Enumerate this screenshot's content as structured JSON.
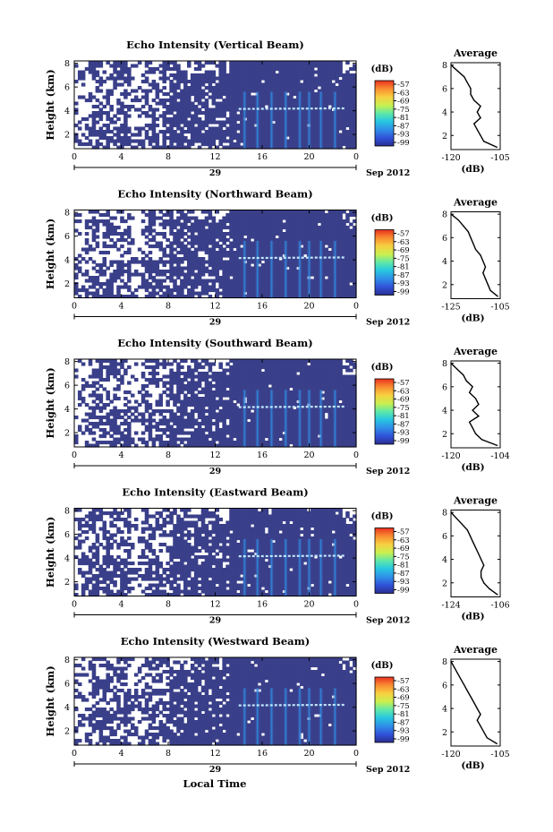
{
  "figure": {
    "xlabel": "Local Time",
    "date_label": "Sep 2012",
    "day_label": "29",
    "cbar_unit": "(dB)",
    "avg_title": "Average",
    "avg_xlabel": "(dB)"
  },
  "chart_data": [
    {
      "type": "heatmap",
      "title": "Echo Intensity (Vertical Beam)",
      "ylabel": "Height (km)",
      "xlabel": "",
      "x_ticks": [
        "0",
        "4",
        "8",
        "12",
        "16",
        "20",
        "0"
      ],
      "y_ticks": [
        "2",
        "4",
        "6",
        "8"
      ],
      "xlim": [
        0,
        24
      ],
      "ylim": [
        0.8,
        8.2
      ],
      "colorbar": {
        "label": "(dB)",
        "ticks": [
          "-57",
          "-63",
          "-69",
          "-75",
          "-81",
          "-87",
          "-93",
          "-99"
        ]
      },
      "note": "clear-air echo field; bright band at ~4.2 km from ~14 to ~23 LT; vertical rain streaks ~15–23 LT",
      "average_profile": {
        "title": "Average",
        "xlabel": "(dB)",
        "xlim": [
          -120,
          -105
        ],
        "x_ticks": [
          "-120",
          "-105"
        ],
        "y_ticks": [
          "2",
          "4",
          "6",
          "8"
        ],
        "heights": [
          1.0,
          1.5,
          2.0,
          2.5,
          3.0,
          3.5,
          4.0,
          4.5,
          5.0,
          5.5,
          6.0,
          6.5,
          7.0,
          7.5,
          8.0
        ],
        "values": [
          -106,
          -110,
          -111,
          -112,
          -113,
          -111,
          -112,
          -111,
          -113,
          -114,
          -114,
          -115,
          -116,
          -118,
          -120
        ]
      }
    },
    {
      "type": "heatmap",
      "title": "Echo Intensity (Northward Beam)",
      "ylabel": "Height (km)",
      "xlabel": "",
      "x_ticks": [
        "0",
        "4",
        "8",
        "12",
        "16",
        "20",
        "0"
      ],
      "y_ticks": [
        "2",
        "4",
        "6",
        "8"
      ],
      "xlim": [
        0,
        24
      ],
      "ylim": [
        0.8,
        8.2
      ],
      "colorbar": {
        "label": "(dB)",
        "ticks": [
          "-57",
          "-63",
          "-69",
          "-75",
          "-81",
          "-87",
          "-93",
          "-99"
        ]
      },
      "average_profile": {
        "title": "Average",
        "xlabel": "(dB)",
        "xlim": [
          -125,
          -105
        ],
        "x_ticks": [
          "-125",
          "-105"
        ],
        "y_ticks": [
          "2",
          "4",
          "6",
          "8"
        ],
        "heights": [
          1.0,
          1.5,
          2.0,
          2.5,
          3.0,
          3.5,
          4.0,
          4.5,
          5.0,
          5.5,
          6.0,
          6.5,
          7.0,
          7.5,
          8.0
        ],
        "values": [
          -106,
          -109,
          -110,
          -111,
          -112,
          -111,
          -112,
          -113,
          -115,
          -116,
          -117,
          -118,
          -120,
          -122,
          -125
        ]
      }
    },
    {
      "type": "heatmap",
      "title": "Echo Intensity (Southward Beam)",
      "ylabel": "Height (km)",
      "xlabel": "",
      "x_ticks": [
        "0",
        "4",
        "8",
        "12",
        "16",
        "20",
        "0"
      ],
      "y_ticks": [
        "2",
        "4",
        "6",
        "8"
      ],
      "xlim": [
        0,
        24
      ],
      "ylim": [
        0.8,
        8.2
      ],
      "colorbar": {
        "label": "(dB)",
        "ticks": [
          "-57",
          "-63",
          "-69",
          "-75",
          "-81",
          "-87",
          "-93",
          "-99"
        ]
      },
      "average_profile": {
        "title": "Average",
        "xlabel": "(dB)",
        "xlim": [
          -120,
          -104
        ],
        "x_ticks": [
          "-120",
          "-104"
        ],
        "y_ticks": [
          "2",
          "4",
          "6",
          "8"
        ],
        "heights": [
          1.0,
          1.5,
          2.0,
          2.5,
          3.0,
          3.5,
          4.0,
          4.5,
          5.0,
          5.5,
          6.0,
          6.5,
          7.0,
          7.5,
          8.0
        ],
        "values": [
          -105,
          -110,
          -112,
          -113,
          -114,
          -111,
          -113,
          -111,
          -112,
          -114,
          -113,
          -115,
          -116,
          -118,
          -120
        ]
      }
    },
    {
      "type": "heatmap",
      "title": "Echo Intensity (Eastward Beam)",
      "ylabel": "Height (km)",
      "xlabel": "",
      "x_ticks": [
        "0",
        "4",
        "8",
        "12",
        "16",
        "20",
        "0"
      ],
      "y_ticks": [
        "2",
        "4",
        "6",
        "8"
      ],
      "xlim": [
        0,
        24
      ],
      "ylim": [
        0.8,
        8.2
      ],
      "colorbar": {
        "label": "(dB)",
        "ticks": [
          "-57",
          "-63",
          "-69",
          "-75",
          "-81",
          "-87",
          "-93",
          "-99"
        ]
      },
      "average_profile": {
        "title": "Average",
        "xlabel": "(dB)",
        "xlim": [
          -124,
          -106
        ],
        "x_ticks": [
          "-124",
          "-106"
        ],
        "y_ticks": [
          "2",
          "4",
          "6",
          "8"
        ],
        "heights": [
          1.0,
          1.5,
          2.0,
          2.5,
          3.0,
          3.5,
          4.0,
          4.5,
          5.0,
          5.5,
          6.0,
          6.5,
          7.0,
          7.5,
          8.0
        ],
        "values": [
          -107,
          -110,
          -112,
          -113,
          -113,
          -112,
          -113,
          -114,
          -115,
          -116,
          -117,
          -118,
          -120,
          -122,
          -124
        ]
      }
    },
    {
      "type": "heatmap",
      "title": "Echo Intensity (Westward Beam)",
      "ylabel": "Height (km)",
      "xlabel": "Local Time",
      "x_ticks": [
        "0",
        "4",
        "8",
        "12",
        "16",
        "20",
        "0"
      ],
      "y_ticks": [
        "2",
        "4",
        "6",
        "8"
      ],
      "xlim": [
        0,
        24
      ],
      "ylim": [
        0.8,
        8.2
      ],
      "colorbar": {
        "label": "(dB)",
        "ticks": [
          "-57",
          "-63",
          "-69",
          "-75",
          "-81",
          "-87",
          "-93",
          "-99"
        ]
      },
      "average_profile": {
        "title": "Average",
        "xlabel": "(dB)",
        "xlim": [
          -120,
          -105
        ],
        "x_ticks": [
          "-120",
          "-105"
        ],
        "y_ticks": [
          "2",
          "4",
          "6",
          "8"
        ],
        "heights": [
          1.0,
          1.5,
          2.0,
          2.5,
          3.0,
          3.5,
          4.0,
          4.5,
          5.0,
          5.5,
          6.0,
          6.5,
          7.0,
          7.5,
          8.0
        ],
        "values": [
          -106,
          -109,
          -110,
          -111,
          -112,
          -111,
          -112,
          -113,
          -114,
          -115,
          -116,
          -117,
          -118,
          -119,
          -120
        ]
      }
    }
  ],
  "colors": {
    "background_echo": "#3a3f8a",
    "colormap": [
      "#2a2f8f",
      "#3050d8",
      "#2f8fe8",
      "#28c8e0",
      "#5fe8a8",
      "#c8f050",
      "#f8d040",
      "#f88a30",
      "#e83020"
    ]
  }
}
